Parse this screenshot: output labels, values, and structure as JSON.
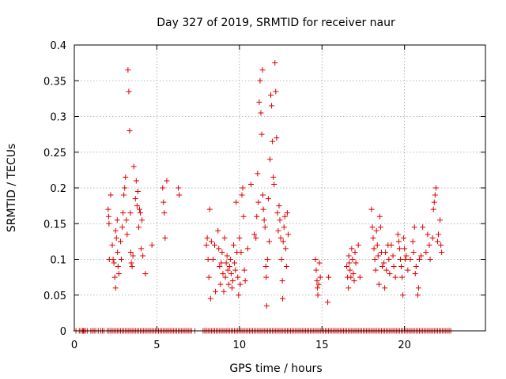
{
  "chart_data": {
    "type": "scatter",
    "title": "Day 327 of 2019, SRMTID for receiver naur",
    "xlabel": "GPS time / hours",
    "ylabel": "SRMTID / TECUs",
    "xlim": [
      0,
      24.9
    ],
    "ylim": [
      0,
      0.4
    ],
    "xticks": [
      0,
      5,
      10,
      15,
      20
    ],
    "xtick_labels": [
      "0",
      "5",
      "10",
      "15",
      "20"
    ],
    "yticks": [
      0,
      0.05,
      0.1,
      0.15,
      0.2,
      0.25,
      0.3,
      0.35,
      0.4
    ],
    "ytick_labels": [
      "0",
      "0.05",
      "0.1",
      "0.15",
      "0.2",
      "0.25",
      "0.3",
      "0.35",
      "0.4"
    ],
    "grid": true,
    "marker": "plus",
    "color": "#e00000",
    "series": [
      {
        "name": "SRMTID",
        "points": [
          [
            2.05,
            0.17
          ],
          [
            2.08,
            0.16
          ],
          [
            2.1,
            0.15
          ],
          [
            2.12,
            0.1
          ],
          [
            2.2,
            0.19
          ],
          [
            2.3,
            0.12
          ],
          [
            2.35,
            0.1
          ],
          [
            2.4,
            0.095
          ],
          [
            2.45,
            0.075
          ],
          [
            2.5,
            0.06
          ],
          [
            2.5,
            0.14
          ],
          [
            2.55,
            0.13
          ],
          [
            2.6,
            0.155
          ],
          [
            2.62,
            0.11
          ],
          [
            2.65,
            0.09
          ],
          [
            2.7,
            0.08
          ],
          [
            2.8,
            0.125
          ],
          [
            2.85,
            0.1
          ],
          [
            2.9,
            0.145
          ],
          [
            2.95,
            0.165
          ],
          [
            3.0,
            0.19
          ],
          [
            3.05,
            0.2
          ],
          [
            3.1,
            0.215
          ],
          [
            3.15,
            0.155
          ],
          [
            3.2,
            0.135
          ],
          [
            3.25,
            0.365
          ],
          [
            3.3,
            0.335
          ],
          [
            3.35,
            0.28
          ],
          [
            3.4,
            0.165
          ],
          [
            3.42,
            0.11
          ],
          [
            3.45,
            0.095
          ],
          [
            3.5,
            0.09
          ],
          [
            3.55,
            0.105
          ],
          [
            3.6,
            0.23
          ],
          [
            3.7,
            0.185
          ],
          [
            3.75,
            0.21
          ],
          [
            3.8,
            0.175
          ],
          [
            3.85,
            0.195
          ],
          [
            3.9,
            0.145
          ],
          [
            3.95,
            0.17
          ],
          [
            4.0,
            0.165
          ],
          [
            4.05,
            0.115
          ],
          [
            4.1,
            0.155
          ],
          [
            4.15,
            0.105
          ],
          [
            4.3,
            0.08
          ],
          [
            4.7,
            0.12
          ],
          [
            5.35,
            0.2
          ],
          [
            5.4,
            0.18
          ],
          [
            5.45,
            0.165
          ],
          [
            5.5,
            0.13
          ],
          [
            5.6,
            0.21
          ],
          [
            6.3,
            0.2
          ],
          [
            6.35,
            0.19
          ],
          [
            8.0,
            0.12
          ],
          [
            8.05,
            0.13
          ],
          [
            8.1,
            0.1
          ],
          [
            8.15,
            0.075
          ],
          [
            8.2,
            0.17
          ],
          [
            8.25,
            0.045
          ],
          [
            8.3,
            0.125
          ],
          [
            8.4,
            0.1
          ],
          [
            8.5,
            0.12
          ],
          [
            8.55,
            0.055
          ],
          [
            8.7,
            0.14
          ],
          [
            8.75,
            0.115
          ],
          [
            8.8,
            0.09
          ],
          [
            8.85,
            0.065
          ],
          [
            8.9,
            0.095
          ],
          [
            8.95,
            0.11
          ],
          [
            9.0,
            0.08
          ],
          [
            9.05,
            0.055
          ],
          [
            9.1,
            0.13
          ],
          [
            9.15,
            0.075
          ],
          [
            9.2,
            0.095
          ],
          [
            9.25,
            0.105
          ],
          [
            9.3,
            0.085
          ],
          [
            9.35,
            0.065
          ],
          [
            9.4,
            0.09
          ],
          [
            9.45,
            0.1
          ],
          [
            9.5,
            0.08
          ],
          [
            9.55,
            0.06
          ],
          [
            9.6,
            0.07
          ],
          [
            9.65,
            0.12
          ],
          [
            9.7,
            0.095
          ],
          [
            9.75,
            0.085
          ],
          [
            9.8,
            0.18
          ],
          [
            9.85,
            0.11
          ],
          [
            9.9,
            0.075
          ],
          [
            9.95,
            0.05
          ],
          [
            10.0,
            0.13
          ],
          [
            10.05,
            0.065
          ],
          [
            10.1,
            0.11
          ],
          [
            10.15,
            0.19
          ],
          [
            10.2,
            0.2
          ],
          [
            10.25,
            0.16
          ],
          [
            10.3,
            0.085
          ],
          [
            10.35,
            0.07
          ],
          [
            10.5,
            0.115
          ],
          [
            10.7,
            0.205
          ],
          [
            10.9,
            0.135
          ],
          [
            11.0,
            0.13
          ],
          [
            11.05,
            0.16
          ],
          [
            11.1,
            0.22
          ],
          [
            11.15,
            0.18
          ],
          [
            11.2,
            0.32
          ],
          [
            11.25,
            0.35
          ],
          [
            11.3,
            0.305
          ],
          [
            11.35,
            0.275
          ],
          [
            11.4,
            0.365
          ],
          [
            11.42,
            0.19
          ],
          [
            11.45,
            0.17
          ],
          [
            11.5,
            0.155
          ],
          [
            11.55,
            0.145
          ],
          [
            11.6,
            0.09
          ],
          [
            11.62,
            0.075
          ],
          [
            11.65,
            0.035
          ],
          [
            11.7,
            0.1
          ],
          [
            11.75,
            0.185
          ],
          [
            11.8,
            0.125
          ],
          [
            11.85,
            0.24
          ],
          [
            11.9,
            0.33
          ],
          [
            11.95,
            0.315
          ],
          [
            12.0,
            0.265
          ],
          [
            12.05,
            0.215
          ],
          [
            12.1,
            0.205
          ],
          [
            12.15,
            0.375
          ],
          [
            12.2,
            0.335
          ],
          [
            12.25,
            0.27
          ],
          [
            12.3,
            0.165
          ],
          [
            12.35,
            0.14
          ],
          [
            12.4,
            0.175
          ],
          [
            12.45,
            0.155
          ],
          [
            12.5,
            0.13
          ],
          [
            12.55,
            0.1
          ],
          [
            12.6,
            0.07
          ],
          [
            12.62,
            0.045
          ],
          [
            12.65,
            0.125
          ],
          [
            12.7,
            0.145
          ],
          [
            12.75,
            0.16
          ],
          [
            12.8,
            0.115
          ],
          [
            12.85,
            0.09
          ],
          [
            12.9,
            0.165
          ],
          [
            12.95,
            0.135
          ],
          [
            14.6,
            0.1
          ],
          [
            14.65,
            0.085
          ],
          [
            14.7,
            0.07
          ],
          [
            14.72,
            0.06
          ],
          [
            14.75,
            0.05
          ],
          [
            14.8,
            0.065
          ],
          [
            14.85,
            0.095
          ],
          [
            14.9,
            0.075
          ],
          [
            15.35,
            0.04
          ],
          [
            15.4,
            0.075
          ],
          [
            16.5,
            0.09
          ],
          [
            16.55,
            0.075
          ],
          [
            16.6,
            0.06
          ],
          [
            16.62,
            0.105
          ],
          [
            16.65,
            0.095
          ],
          [
            16.7,
            0.085
          ],
          [
            16.75,
            0.075
          ],
          [
            16.8,
            0.115
          ],
          [
            16.85,
            0.1
          ],
          [
            16.9,
            0.08
          ],
          [
            16.95,
            0.07
          ],
          [
            17.0,
            0.11
          ],
          [
            17.05,
            0.095
          ],
          [
            17.2,
            0.12
          ],
          [
            17.3,
            0.075
          ],
          [
            18.0,
            0.17
          ],
          [
            18.05,
            0.145
          ],
          [
            18.1,
            0.13
          ],
          [
            18.15,
            0.115
          ],
          [
            18.2,
            0.1
          ],
          [
            18.25,
            0.085
          ],
          [
            18.3,
            0.14
          ],
          [
            18.35,
            0.12
          ],
          [
            18.4,
            0.105
          ],
          [
            18.45,
            0.065
          ],
          [
            18.5,
            0.16
          ],
          [
            18.55,
            0.145
          ],
          [
            18.6,
            0.11
          ],
          [
            18.65,
            0.09
          ],
          [
            18.75,
            0.095
          ],
          [
            18.8,
            0.06
          ],
          [
            18.85,
            0.11
          ],
          [
            18.9,
            0.085
          ],
          [
            19.0,
            0.12
          ],
          [
            19.05,
            0.1
          ],
          [
            19.1,
            0.08
          ],
          [
            19.2,
            0.12
          ],
          [
            19.3,
            0.105
          ],
          [
            19.35,
            0.09
          ],
          [
            19.45,
            0.075
          ],
          [
            19.6,
            0.135
          ],
          [
            19.65,
            0.125
          ],
          [
            19.7,
            0.115
          ],
          [
            19.75,
            0.1
          ],
          [
            19.8,
            0.09
          ],
          [
            19.85,
            0.075
          ],
          [
            19.9,
            0.05
          ],
          [
            19.95,
            0.13
          ],
          [
            20.0,
            0.115
          ],
          [
            20.05,
            0.1
          ],
          [
            20.1,
            0.105
          ],
          [
            20.2,
            0.085
          ],
          [
            20.35,
            0.1
          ],
          [
            20.5,
            0.125
          ],
          [
            20.55,
            0.11
          ],
          [
            20.6,
            0.145
          ],
          [
            20.65,
            0.08
          ],
          [
            20.7,
            0.09
          ],
          [
            20.8,
            0.05
          ],
          [
            20.85,
            0.06
          ],
          [
            20.9,
            0.1
          ],
          [
            21.0,
            0.105
          ],
          [
            21.1,
            0.145
          ],
          [
            21.3,
            0.11
          ],
          [
            21.4,
            0.135
          ],
          [
            21.5,
            0.12
          ],
          [
            21.55,
            0.1
          ],
          [
            21.7,
            0.13
          ],
          [
            21.75,
            0.17
          ],
          [
            21.8,
            0.18
          ],
          [
            21.85,
            0.19
          ],
          [
            21.9,
            0.2
          ],
          [
            22.0,
            0.125
          ],
          [
            22.05,
            0.135
          ],
          [
            22.15,
            0.155
          ],
          [
            22.2,
            0.12
          ],
          [
            22.25,
            0.11
          ]
        ],
        "zero_x": [
          0.1,
          0.3,
          0.4,
          0.5,
          0.55,
          0.6,
          0.7,
          0.8,
          1.0,
          1.1,
          1.2,
          1.3,
          1.45,
          1.6,
          1.7,
          1.8,
          2.0,
          2.1,
          2.2,
          2.3,
          2.4,
          2.5,
          2.6,
          2.7,
          2.8,
          2.9,
          3.0,
          3.1,
          3.2,
          3.3,
          3.4,
          3.5,
          3.6,
          3.7,
          3.8,
          3.9,
          4.0,
          4.1,
          4.2,
          4.3,
          4.4,
          4.5,
          4.6,
          4.7,
          4.8,
          4.9,
          5.0,
          5.1,
          5.2,
          5.3,
          5.4,
          5.5,
          5.6,
          5.7,
          5.8,
          5.9,
          6.0,
          6.1,
          6.2,
          6.3,
          6.4,
          6.5,
          6.6,
          6.7,
          6.8,
          6.9,
          7.0,
          7.1,
          7.3,
          7.8,
          7.9,
          8.0,
          8.1,
          8.2,
          8.3,
          8.4,
          8.5,
          8.6,
          8.7,
          8.8,
          8.9,
          9.0,
          9.1,
          9.2,
          9.3,
          9.4,
          9.5,
          9.6,
          9.7,
          9.8,
          9.9,
          10.0,
          10.1,
          10.2,
          10.3,
          10.4,
          10.5,
          10.6,
          10.7,
          10.8,
          10.9,
          11.0,
          11.1,
          11.2,
          11.3,
          11.4,
          11.5,
          11.6,
          11.7,
          11.8,
          11.9,
          12.0,
          12.1,
          12.2,
          12.3,
          12.4,
          12.5,
          12.6,
          12.7,
          12.8,
          12.9,
          13.0,
          13.1,
          13.2,
          13.3,
          13.4,
          13.5,
          13.6,
          13.7,
          13.8,
          13.9,
          14.0,
          14.1,
          14.2,
          14.3,
          14.4,
          14.5,
          14.6,
          14.7,
          14.8,
          14.9,
          15.0,
          15.1,
          15.2,
          15.3,
          15.4,
          15.5,
          15.6,
          15.7,
          15.8,
          15.9,
          16.0,
          16.1,
          16.2,
          16.3,
          16.4,
          16.5,
          16.6,
          16.7,
          16.8,
          16.9,
          17.0,
          17.1,
          17.2,
          17.3,
          17.4,
          17.5,
          17.6,
          17.7,
          17.8,
          17.9,
          18.0,
          18.1,
          18.2,
          18.3,
          18.4,
          18.5,
          18.6,
          18.7,
          18.8,
          18.9,
          19.0,
          19.1,
          19.2,
          19.3,
          19.4,
          19.5,
          19.6,
          19.7,
          19.8,
          19.9,
          20.0,
          20.1,
          20.2,
          20.3,
          20.4,
          20.5,
          20.6,
          20.7,
          20.8,
          20.9,
          21.0,
          21.1,
          21.2,
          21.3,
          21.4,
          21.5,
          21.6,
          21.7,
          21.8,
          21.9,
          22.0,
          22.1,
          22.2,
          22.3,
          22.4,
          22.5,
          22.6,
          22.7,
          22.8
        ]
      }
    ]
  }
}
